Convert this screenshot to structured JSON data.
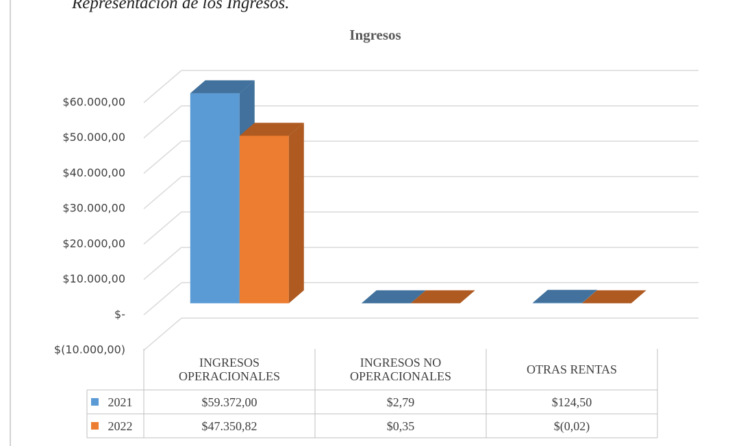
{
  "caption": "Representación de los Ingresos.",
  "chart_data": {
    "type": "bar3d",
    "title": "Ingresos",
    "categories": [
      "INGRESOS OPERACIONALES",
      "INGRESOS NO OPERACIONALES",
      "OTRAS RENTAS"
    ],
    "series": [
      {
        "name": "2021",
        "color": "#5b9bd5",
        "side_color": "#41719c",
        "values": [
          59372,
          2.79,
          124.5
        ],
        "value_labels": [
          "$59.372,00",
          "$2,79",
          "$124,50"
        ]
      },
      {
        "name": "2022",
        "color": "#ed7d31",
        "side_color": "#ae5a21",
        "values": [
          47350.82,
          0.35,
          -0.02
        ],
        "value_labels": [
          "$47.350,82",
          "$0,35",
          "$(0,02)"
        ]
      }
    ],
    "ylim": [
      -10000,
      60000
    ],
    "yticks": [
      {
        "value": -10000,
        "label": "$(10.000,00)"
      },
      {
        "value": 0,
        "label": "$-"
      },
      {
        "value": 10000,
        "label": "$10.000,00"
      },
      {
        "value": 20000,
        "label": "$20.000,00"
      },
      {
        "value": 30000,
        "label": "$30.000,00"
      },
      {
        "value": 40000,
        "label": "$40.000,00"
      },
      {
        "value": 50000,
        "label": "$50.000,00"
      },
      {
        "value": 60000,
        "label": "$60.000,00"
      }
    ],
    "grid": true,
    "data_table": true
  }
}
